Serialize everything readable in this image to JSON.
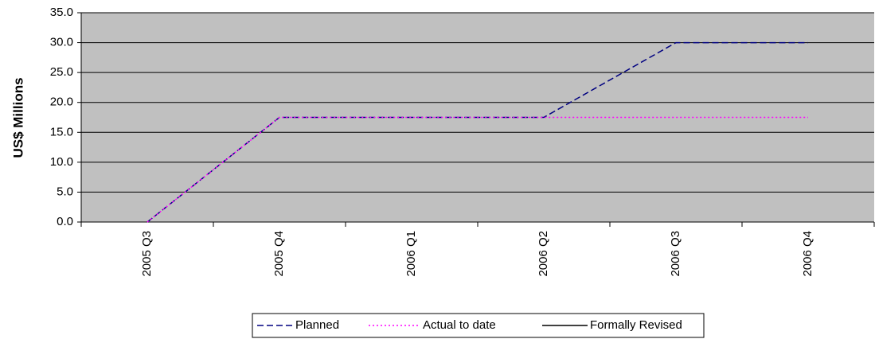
{
  "chart_data": {
    "type": "line",
    "y_label": "US$ Millions",
    "categories": [
      "2005 Q3",
      "2005 Q4",
      "2006 Q1",
      "2006 Q2",
      "2006 Q3",
      "2006 Q4"
    ],
    "series": [
      {
        "name": "Planned",
        "color": "#000080",
        "dash": "dashed",
        "values": [
          0,
          17.5,
          17.5,
          17.5,
          30,
          30
        ]
      },
      {
        "name": "Actual to date",
        "color": "#ff00ff",
        "dash": "dotted",
        "values": [
          0,
          17.5,
          17.5,
          17.5,
          17.5,
          17.5
        ]
      },
      {
        "name": "Formally Revised",
        "color": "#000000",
        "dash": "solid",
        "values": [
          null,
          null,
          null,
          null,
          null,
          null
        ]
      }
    ],
    "ylim": [
      0,
      35
    ],
    "yticks": [
      {
        "value": 0,
        "label": "0.0"
      },
      {
        "value": 5,
        "label": "5.0"
      },
      {
        "value": 10,
        "label": "10.0"
      },
      {
        "value": 15,
        "label": "15.0"
      },
      {
        "value": 20,
        "label": "20.0"
      },
      {
        "value": 25,
        "label": "25.0"
      },
      {
        "value": 30,
        "label": "30.0"
      },
      {
        "value": 35,
        "label": "35.0"
      }
    ],
    "grid": true,
    "legend": "bottom"
  }
}
